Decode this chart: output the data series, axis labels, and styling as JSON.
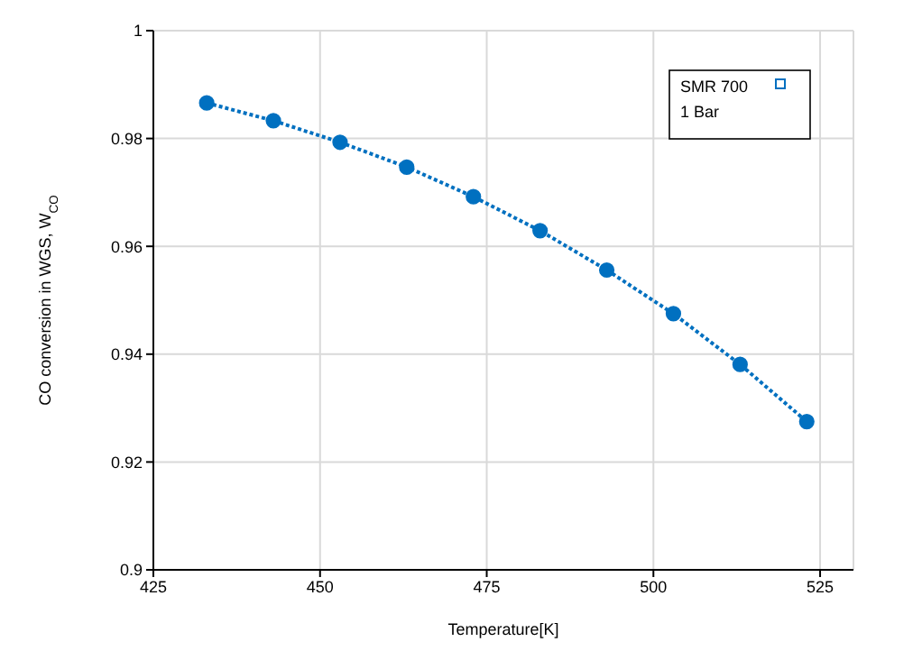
{
  "chart_data": {
    "type": "line",
    "xlabel": "Temperature[K]",
    "ylabel": "CO  conversion in WGS, W$_{CO}$",
    "x": [
      433,
      443,
      453,
      463,
      473,
      483,
      493,
      503,
      513,
      523
    ],
    "series": [
      {
        "name": "SMR 700",
        "color": "#0070c0",
        "values": [
          0.9866,
          0.9833,
          0.9793,
          0.9747,
          0.9692,
          0.9629,
          0.9556,
          0.9475,
          0.9381,
          0.9275
        ]
      }
    ],
    "xlim": [
      425,
      530
    ],
    "xticks": [
      425,
      450,
      475,
      500,
      525
    ],
    "ylim": [
      0.9,
      1
    ],
    "yticks": [
      0.9,
      0.92,
      0.94,
      0.96,
      0.98,
      1
    ],
    "annotations": [
      "1 Bar"
    ],
    "grid": true,
    "legend": "top right",
    "marker": "circle",
    "line_style": "dotted"
  }
}
